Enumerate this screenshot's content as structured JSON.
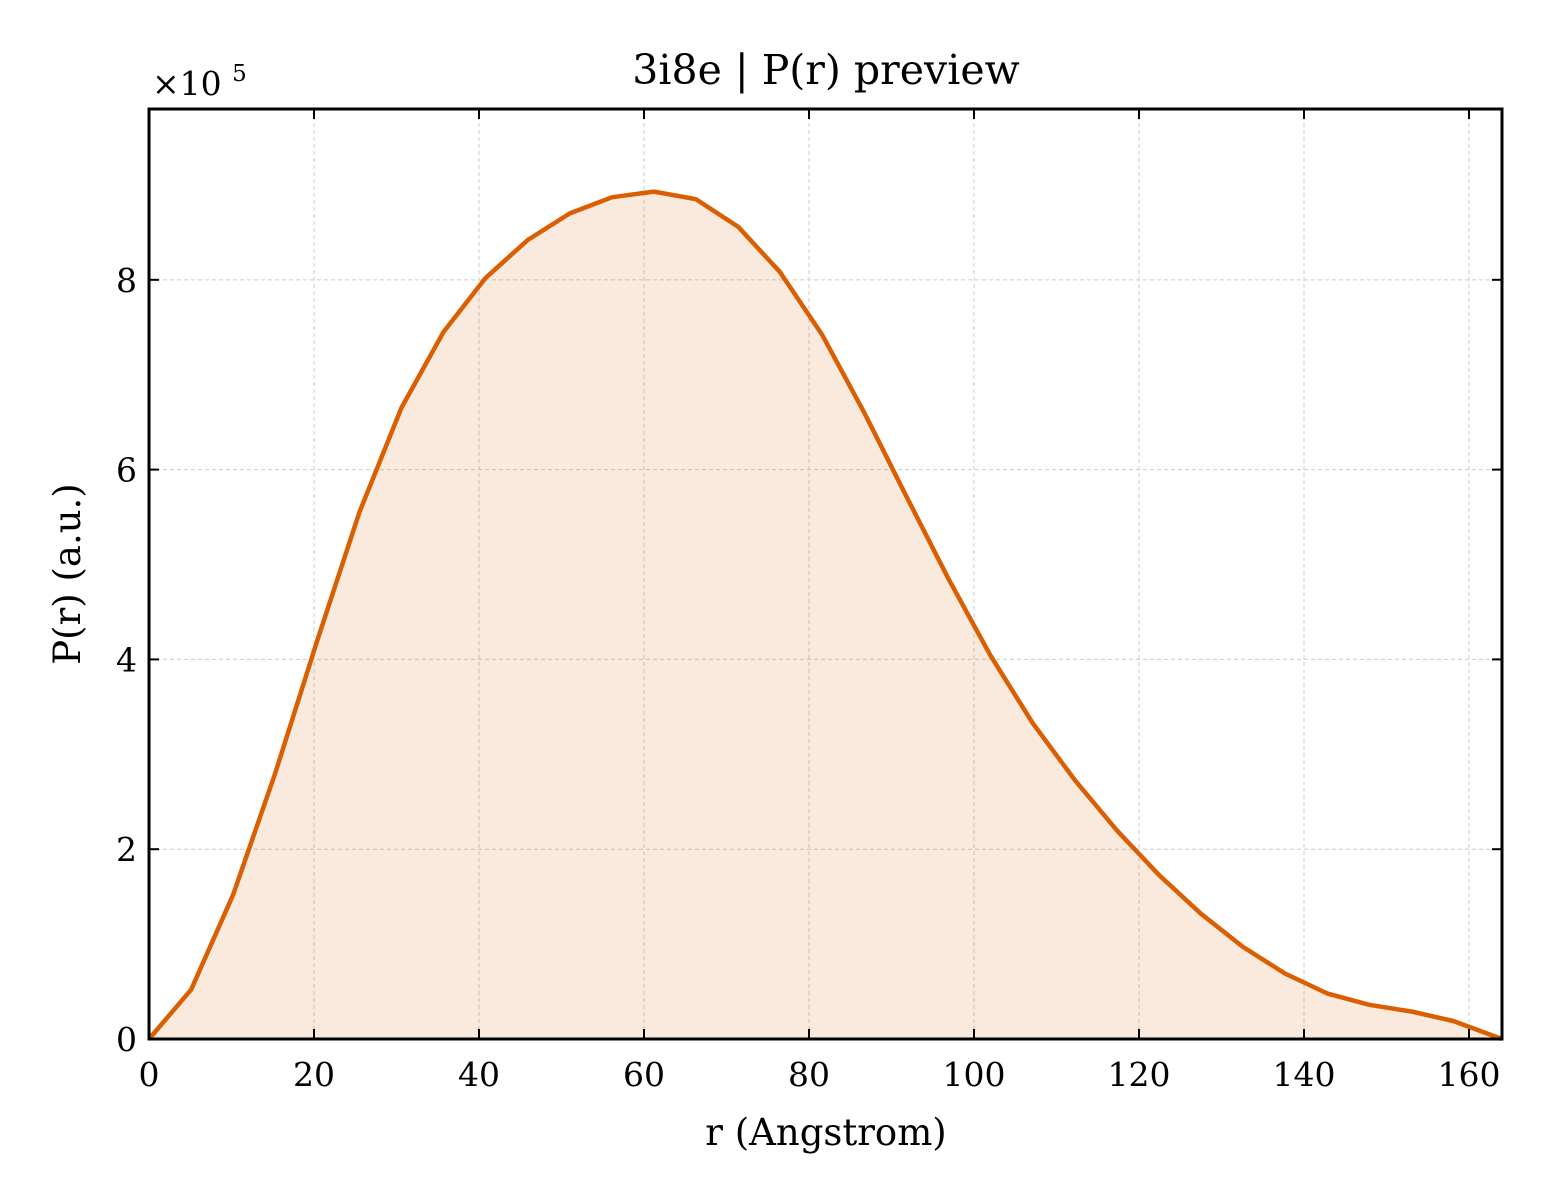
{
  "chart_data": {
    "type": "area",
    "title": "3i8e | P(r) preview",
    "xlabel": "r (Angstrom)",
    "ylabel": "P(r) (a.u.)",
    "y_multiplier": {
      "base": "×10",
      "exponent": "5"
    },
    "xlim": [
      0,
      164
    ],
    "ylim": [
      0,
      9.8
    ],
    "x_ticks": [
      0,
      20,
      40,
      60,
      80,
      100,
      120,
      140,
      160
    ],
    "y_ticks": [
      0,
      2,
      4,
      6,
      8
    ],
    "grid": true,
    "colors": {
      "line": "#d95f02",
      "fill": "#d95f02",
      "grid": "#cccccc",
      "axes": "#000000"
    },
    "series": [
      {
        "x": [
          0,
          5.1,
          10.2,
          15.3,
          20.4,
          25.5,
          30.6,
          35.7,
          40.8,
          45.9,
          51.0,
          56.1,
          61.2,
          66.3,
          71.4,
          76.5,
          81.6,
          86.7,
          91.8,
          96.9,
          102.0,
          107.1,
          112.2,
          117.3,
          122.4,
          127.5,
          132.6,
          137.7,
          142.8,
          147.9,
          153.0,
          158.1,
          164.0
        ],
        "y": [
          0,
          0.52,
          1.52,
          2.8,
          4.2,
          5.55,
          6.65,
          7.45,
          8.02,
          8.42,
          8.7,
          8.87,
          8.93,
          8.85,
          8.56,
          8.08,
          7.42,
          6.6,
          5.72,
          4.85,
          4.04,
          3.33,
          2.73,
          2.2,
          1.73,
          1.32,
          0.97,
          0.69,
          0.48,
          0.36,
          0.29,
          0.19,
          0.0
        ]
      }
    ]
  }
}
